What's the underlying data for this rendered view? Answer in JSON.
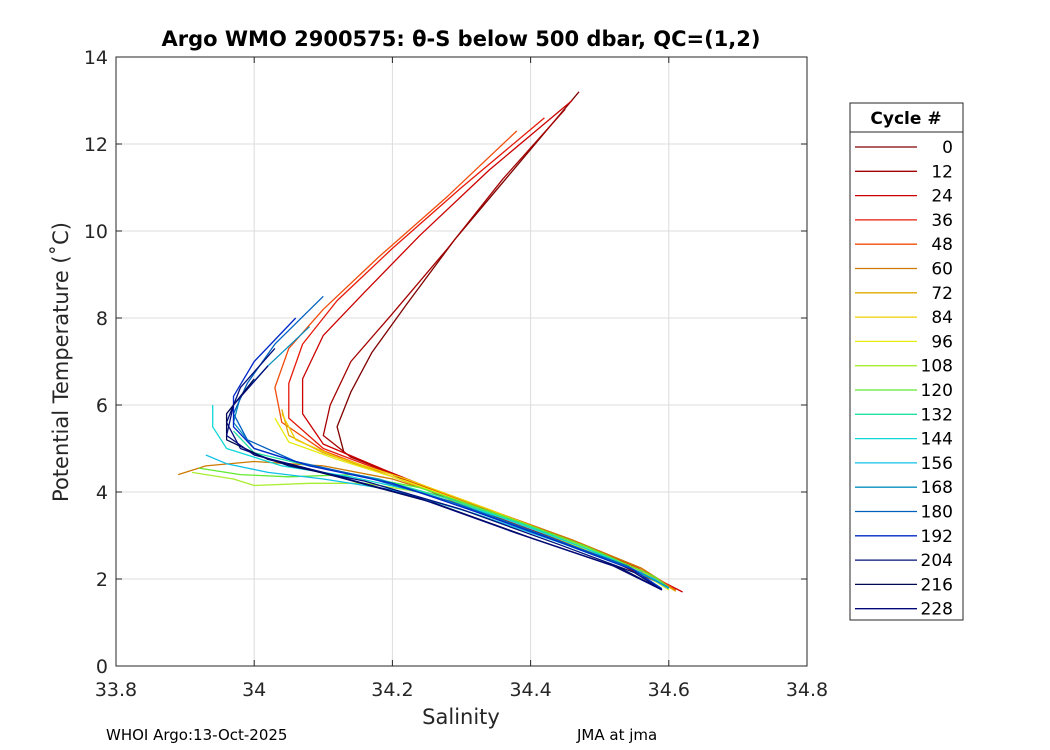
{
  "chart_data": {
    "type": "line",
    "title": "Argo WMO 2900575: θ-S below 500 dbar,  QC=(1,2)",
    "xlabel": "Salinity",
    "ylabel": "Potential Temperature (˚C)",
    "xlim": [
      33.8,
      34.8
    ],
    "ylim": [
      0,
      14
    ],
    "xticks": [
      33.8,
      34,
      34.2,
      34.4,
      34.6,
      34.8
    ],
    "xtick_labels": [
      "33.8",
      "34",
      "34.2",
      "34.4",
      "34.6",
      "34.8"
    ],
    "yticks": [
      0,
      2,
      4,
      6,
      8,
      10,
      12,
      14
    ],
    "ytick_labels": [
      "0",
      "2",
      "4",
      "6",
      "8",
      "10",
      "12",
      "14"
    ],
    "grid": true,
    "legend": {
      "title": "Cycle #",
      "placement": "outside-right",
      "entries": [
        {
          "label": "0",
          "color": "#7f0000"
        },
        {
          "label": "12",
          "color": "#a50000"
        },
        {
          "label": "24",
          "color": "#cc0000"
        },
        {
          "label": "36",
          "color": "#e6190a"
        },
        {
          "label": "48",
          "color": "#f24c0a"
        },
        {
          "label": "60",
          "color": "#cc7a00"
        },
        {
          "label": "72",
          "color": "#e0a800"
        },
        {
          "label": "84",
          "color": "#f0d000"
        },
        {
          "label": "96",
          "color": "#e6ec10"
        },
        {
          "label": "108",
          "color": "#a8ee30"
        },
        {
          "label": "120",
          "color": "#60ea30"
        },
        {
          "label": "132",
          "color": "#20e0a0"
        },
        {
          "label": "144",
          "color": "#10d8d8"
        },
        {
          "label": "156",
          "color": "#10c0e8"
        },
        {
          "label": "168",
          "color": "#0890c0"
        },
        {
          "label": "180",
          "color": "#0060c0"
        },
        {
          "label": "192",
          "color": "#0028c8"
        },
        {
          "label": "204",
          "color": "#00107a"
        },
        {
          "label": "216",
          "color": "#000a50"
        },
        {
          "label": "228",
          "color": "#00087a"
        }
      ]
    },
    "series": [
      {
        "name": "Cycle 0",
        "color": "#7f0000",
        "points": [
          [
            34.47,
            13.2
          ],
          [
            34.38,
            11.5
          ],
          [
            34.29,
            9.8
          ],
          [
            34.22,
            8.3
          ],
          [
            34.17,
            7.2
          ],
          [
            34.14,
            6.3
          ],
          [
            34.12,
            5.5
          ],
          [
            34.13,
            4.9
          ],
          [
            34.2,
            4.4
          ],
          [
            34.3,
            3.7
          ],
          [
            34.42,
            3.0
          ],
          [
            34.52,
            2.4
          ],
          [
            34.6,
            1.8
          ]
        ]
      },
      {
        "name": "Cycle 12",
        "color": "#a50000",
        "points": [
          [
            34.45,
            12.8
          ],
          [
            34.36,
            11.2
          ],
          [
            34.28,
            9.6
          ],
          [
            34.2,
            8.1
          ],
          [
            34.14,
            7.0
          ],
          [
            34.11,
            6.0
          ],
          [
            34.1,
            5.3
          ],
          [
            34.14,
            4.8
          ],
          [
            34.22,
            4.3
          ],
          [
            34.32,
            3.6
          ],
          [
            34.44,
            2.9
          ],
          [
            34.54,
            2.3
          ],
          [
            34.61,
            1.75
          ]
        ]
      },
      {
        "name": "Cycle 24",
        "color": "#cc0000",
        "points": [
          [
            34.46,
            13.0
          ],
          [
            34.34,
            11.4
          ],
          [
            34.24,
            9.9
          ],
          [
            34.16,
            8.6
          ],
          [
            34.1,
            7.6
          ],
          [
            34.07,
            6.6
          ],
          [
            34.07,
            5.8
          ],
          [
            34.1,
            5.1
          ],
          [
            34.19,
            4.5
          ],
          [
            34.3,
            3.8
          ],
          [
            34.43,
            3.0
          ],
          [
            34.54,
            2.35
          ],
          [
            34.62,
            1.7
          ]
        ]
      },
      {
        "name": "Cycle 36",
        "color": "#e6190a",
        "points": [
          [
            34.42,
            12.6
          ],
          [
            34.3,
            11.0
          ],
          [
            34.2,
            9.6
          ],
          [
            34.12,
            8.4
          ],
          [
            34.07,
            7.4
          ],
          [
            34.05,
            6.5
          ],
          [
            34.05,
            5.7
          ],
          [
            34.1,
            5.0
          ],
          [
            34.2,
            4.4
          ],
          [
            34.32,
            3.7
          ],
          [
            34.45,
            2.95
          ],
          [
            34.55,
            2.3
          ],
          [
            34.61,
            1.75
          ]
        ]
      },
      {
        "name": "Cycle 48",
        "color": "#f24c0a",
        "points": [
          [
            34.38,
            12.3
          ],
          [
            34.28,
            10.8
          ],
          [
            34.18,
            9.4
          ],
          [
            34.1,
            8.2
          ],
          [
            34.05,
            7.3
          ],
          [
            34.03,
            6.4
          ],
          [
            34.04,
            5.6
          ],
          [
            34.1,
            4.95
          ],
          [
            34.2,
            4.35
          ],
          [
            34.33,
            3.65
          ],
          [
            34.46,
            2.9
          ],
          [
            34.56,
            2.25
          ],
          [
            34.61,
            1.75
          ]
        ]
      },
      {
        "name": "Cycle 60",
        "color": "#cc7a00",
        "points": [
          [
            33.89,
            4.4
          ],
          [
            33.93,
            4.6
          ],
          [
            34.0,
            4.7
          ],
          [
            34.1,
            4.6
          ],
          [
            34.2,
            4.3
          ],
          [
            34.33,
            3.65
          ],
          [
            34.46,
            2.9
          ],
          [
            34.56,
            2.25
          ],
          [
            34.61,
            1.72
          ]
        ]
      },
      {
        "name": "Cycle 72",
        "color": "#e0a800",
        "points": [
          [
            34.04,
            5.9
          ],
          [
            34.05,
            5.3
          ],
          [
            34.1,
            4.9
          ],
          [
            34.2,
            4.35
          ],
          [
            34.33,
            3.6
          ],
          [
            34.46,
            2.85
          ],
          [
            34.56,
            2.2
          ],
          [
            34.61,
            1.72
          ]
        ]
      },
      {
        "name": "Cycle 84",
        "color": "#f0d000",
        "points": [
          [
            34.04,
            5.8
          ],
          [
            34.06,
            5.2
          ],
          [
            34.12,
            4.8
          ],
          [
            34.22,
            4.3
          ],
          [
            34.34,
            3.6
          ],
          [
            34.46,
            2.85
          ],
          [
            34.56,
            2.2
          ],
          [
            34.6,
            1.75
          ]
        ]
      },
      {
        "name": "Cycle 96",
        "color": "#e6ec10",
        "points": [
          [
            34.03,
            5.7
          ],
          [
            34.05,
            5.15
          ],
          [
            34.12,
            4.75
          ],
          [
            34.22,
            4.25
          ],
          [
            34.34,
            3.55
          ],
          [
            34.46,
            2.8
          ],
          [
            34.56,
            2.15
          ],
          [
            34.6,
            1.75
          ]
        ]
      },
      {
        "name": "Cycle 108",
        "color": "#a8ee30",
        "points": [
          [
            33.91,
            4.45
          ],
          [
            33.97,
            4.3
          ],
          [
            34.0,
            4.15
          ],
          [
            34.08,
            4.2
          ],
          [
            34.16,
            4.2
          ],
          [
            34.26,
            3.95
          ],
          [
            34.38,
            3.3
          ],
          [
            34.5,
            2.6
          ],
          [
            34.6,
            1.8
          ]
        ]
      },
      {
        "name": "Cycle 120",
        "color": "#60ea30",
        "points": [
          [
            33.92,
            4.55
          ],
          [
            33.98,
            4.4
          ],
          [
            34.05,
            4.35
          ],
          [
            34.14,
            4.4
          ],
          [
            34.24,
            4.1
          ],
          [
            34.36,
            3.45
          ],
          [
            34.48,
            2.75
          ],
          [
            34.58,
            2.05
          ],
          [
            34.6,
            1.8
          ]
        ]
      },
      {
        "name": "Cycle 132",
        "color": "#20e0a0",
        "points": [
          [
            33.97,
            5.4
          ],
          [
            34.0,
            4.9
          ],
          [
            34.08,
            4.6
          ],
          [
            34.18,
            4.3
          ],
          [
            34.28,
            3.85
          ],
          [
            34.4,
            3.2
          ],
          [
            34.52,
            2.45
          ],
          [
            34.6,
            1.8
          ]
        ]
      },
      {
        "name": "Cycle 144",
        "color": "#10d8d8",
        "points": [
          [
            33.94,
            6.0
          ],
          [
            33.94,
            5.5
          ],
          [
            33.96,
            5.0
          ],
          [
            34.04,
            4.6
          ],
          [
            34.14,
            4.35
          ],
          [
            34.24,
            4.0
          ],
          [
            34.36,
            3.4
          ],
          [
            34.48,
            2.7
          ],
          [
            34.58,
            2.0
          ],
          [
            34.6,
            1.78
          ]
        ]
      },
      {
        "name": "Cycle 156",
        "color": "#10c0e8",
        "points": [
          [
            33.93,
            4.85
          ],
          [
            33.96,
            4.65
          ],
          [
            34.02,
            4.45
          ],
          [
            34.1,
            4.3
          ],
          [
            34.2,
            4.05
          ],
          [
            34.32,
            3.5
          ],
          [
            34.44,
            2.85
          ],
          [
            34.56,
            2.15
          ],
          [
            34.6,
            1.78
          ]
        ]
      },
      {
        "name": "Cycle 168",
        "color": "#0890c0",
        "points": [
          [
            34.08,
            7.8
          ],
          [
            34.02,
            6.9
          ],
          [
            33.98,
            6.2
          ],
          [
            33.97,
            5.6
          ],
          [
            34.0,
            5.0
          ],
          [
            34.08,
            4.6
          ],
          [
            34.18,
            4.3
          ],
          [
            34.3,
            3.7
          ],
          [
            34.42,
            3.0
          ],
          [
            34.54,
            2.3
          ],
          [
            34.6,
            1.8
          ]
        ]
      },
      {
        "name": "Cycle 180",
        "color": "#0060c0",
        "points": [
          [
            34.1,
            8.5
          ],
          [
            34.03,
            7.4
          ],
          [
            33.99,
            6.5
          ],
          [
            33.97,
            5.8
          ],
          [
            33.99,
            5.2
          ],
          [
            34.06,
            4.7
          ],
          [
            34.16,
            4.35
          ],
          [
            34.28,
            3.8
          ],
          [
            34.42,
            3.0
          ],
          [
            34.54,
            2.3
          ],
          [
            34.59,
            1.78
          ]
        ]
      },
      {
        "name": "Cycle 192",
        "color": "#0028c8",
        "points": [
          [
            34.06,
            8.0
          ],
          [
            34.0,
            7.0
          ],
          [
            33.97,
            6.2
          ],
          [
            33.97,
            5.5
          ],
          [
            34.0,
            5.0
          ],
          [
            34.08,
            4.6
          ],
          [
            34.2,
            4.2
          ],
          [
            34.32,
            3.55
          ],
          [
            34.45,
            2.8
          ],
          [
            34.55,
            2.2
          ],
          [
            34.59,
            1.76
          ]
        ]
      },
      {
        "name": "Cycle 204",
        "color": "#00107a",
        "points": [
          [
            34.03,
            7.3
          ],
          [
            33.98,
            6.4
          ],
          [
            33.96,
            5.6
          ],
          [
            33.98,
            5.0
          ],
          [
            34.05,
            4.6
          ],
          [
            34.16,
            4.25
          ],
          [
            34.3,
            3.6
          ],
          [
            34.44,
            2.8
          ],
          [
            34.55,
            2.15
          ],
          [
            34.59,
            1.75
          ]
        ]
      },
      {
        "name": "Cycle 216",
        "color": "#000a50",
        "points": [
          [
            34.0,
            6.6
          ],
          [
            33.96,
            5.8
          ],
          [
            33.96,
            5.2
          ],
          [
            34.02,
            4.75
          ],
          [
            34.12,
            4.35
          ],
          [
            34.26,
            3.75
          ],
          [
            34.4,
            2.95
          ],
          [
            34.53,
            2.25
          ],
          [
            34.59,
            1.75
          ]
        ]
      },
      {
        "name": "Cycle 228",
        "color": "#00087a",
        "points": [
          [
            34.02,
            6.9
          ],
          [
            33.97,
            6.0
          ],
          [
            33.96,
            5.3
          ],
          [
            34.0,
            4.85
          ],
          [
            34.1,
            4.45
          ],
          [
            34.24,
            3.85
          ],
          [
            34.38,
            3.05
          ],
          [
            34.52,
            2.3
          ],
          [
            34.59,
            1.75
          ]
        ]
      }
    ]
  },
  "footer": {
    "left": "WHOI Argo:13-Oct-2025",
    "right": "JMA at jma"
  }
}
